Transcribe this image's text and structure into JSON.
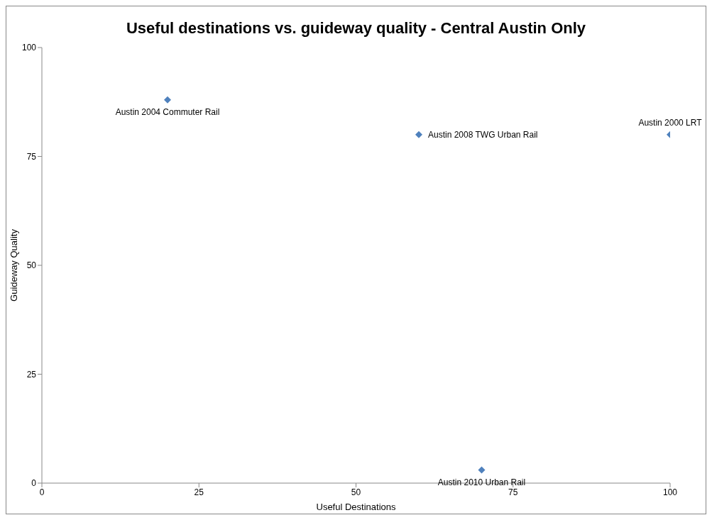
{
  "chart_data": {
    "type": "scatter",
    "title": "Useful destinations vs. guideway quality - Central Austin Only",
    "xlabel": "Useful Destinations",
    "ylabel": "Guideway Quality",
    "x": [
      20,
      60,
      100,
      70
    ],
    "values": [
      88,
      80,
      80,
      3
    ],
    "color": "#4f81bd",
    "marker": "diamond",
    "xlim": [
      0,
      100
    ],
    "xticks": [
      0,
      25,
      50,
      75,
      100
    ],
    "ylim": [
      0,
      100
    ],
    "yticks": [
      0,
      25,
      50,
      75,
      100
    ],
    "grid": false,
    "legend": false,
    "annotations": [
      {
        "text": "Austin 2004  Commuter Rail",
        "x": 20,
        "y": 88
      },
      {
        "text": "Austin 2008  TWG Urban Rail",
        "x": 60,
        "y": 80
      },
      {
        "text": "Austin 2000  LRT",
        "x": 100,
        "y": 80
      },
      {
        "text": "Austin 2010  Urban Rail",
        "x": 70,
        "y": 3
      }
    ]
  }
}
